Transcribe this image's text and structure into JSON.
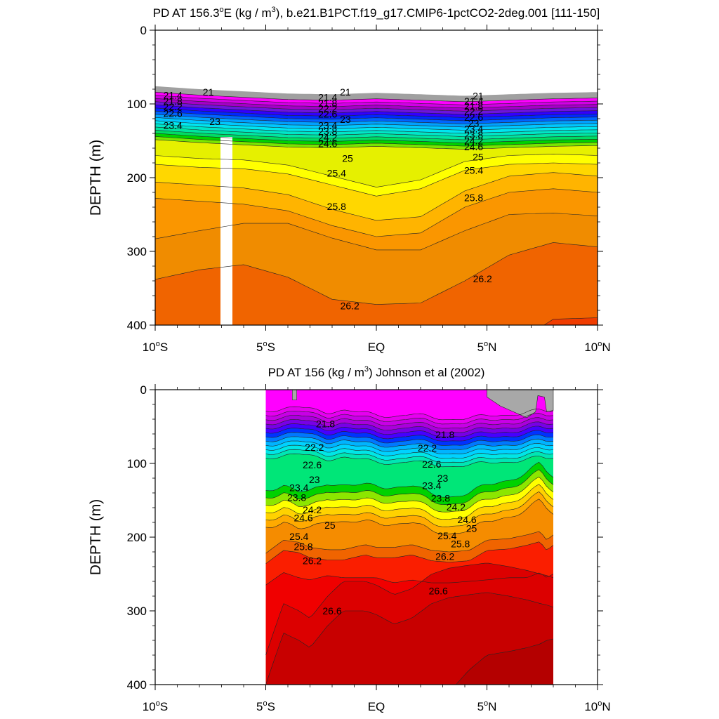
{
  "colors": {
    "levels_top": [
      "#a0a0a0",
      "#ff00ff",
      "#d200e6",
      "#a500c8",
      "#6e14dc",
      "#3200ff",
      "#0028ff",
      "#0064ff",
      "#00a0ff",
      "#00c8ff",
      "#00e6f0",
      "#00e6c8",
      "#00e6a0",
      "#00dc64",
      "#00d200",
      "#78e600",
      "#e6f000",
      "#ffff00",
      "#ffd700",
      "#ffb400",
      "#fa9600",
      "#f08c00",
      "#f06400",
      "#f03c00",
      "#fa0000"
    ],
    "levels_bottom": [
      "#ff00ff",
      "#e600f0",
      "#c800e6",
      "#aa00dc",
      "#7800e6",
      "#4600ff",
      "#0032ff",
      "#0078ff",
      "#00b4ff",
      "#00d2ff",
      "#00e6e6",
      "#00e6b4",
      "#00e678",
      "#00d200",
      "#8ce600",
      "#ffff00",
      "#ffd200",
      "#ffaa00",
      "#f58c00",
      "#f06400",
      "#fa1e00",
      "#f00000",
      "#dc0000",
      "#c80000",
      "#b40000"
    ],
    "land": "#a8a8a8",
    "gap": "#ffffff"
  },
  "chart_data": [
    {
      "type": "heatmap",
      "title": "PD AT 156.3°E (kg / m³), b.e21.B1PCT.f19_g17.CMIP6-1pctCO2-2deg.001 [111-150]",
      "title_parts": {
        "a": "PD AT 156.3",
        "b": "o",
        "c": "E (kg / m",
        "d": "3",
        "e": "), b.e21.B1PCT.f19_g17.CMIP6-1pctCO2-2deg.001 [111-150]"
      },
      "ylabel": "DEPTH (m)",
      "xlim": [
        -10,
        10
      ],
      "ylim": [
        400,
        0
      ],
      "yticks": [
        "0",
        "100",
        "200",
        "300",
        "400"
      ],
      "xticks": [
        {
          "num": "10",
          "sup": "o",
          "hemi": "S"
        },
        {
          "num": "5",
          "sup": "o",
          "hemi": "S"
        },
        {
          "num": "EQ",
          "sup": "",
          "hemi": ""
        },
        {
          "num": "5",
          "sup": "o",
          "hemi": "N"
        },
        {
          "num": "10",
          "sup": "o",
          "hemi": "N"
        }
      ],
      "contour_labels": [
        "21",
        "21.4",
        "21.8",
        "22.2",
        "22.6",
        "23",
        "23.4",
        "23.8",
        "24.2",
        "24.6",
        "25",
        "25.4",
        "25.8",
        "26.2"
      ],
      "labels": [
        {
          "text": "21",
          "lat": -7.6,
          "depth": 84
        },
        {
          "text": "21.4",
          "lat": -9.2,
          "depth": 88
        },
        {
          "text": "21.8",
          "lat": -9.2,
          "depth": 96
        },
        {
          "text": "22.2",
          "lat": -9.2,
          "depth": 104
        },
        {
          "text": "22.6",
          "lat": -9.2,
          "depth": 113
        },
        {
          "text": "23",
          "lat": -7.3,
          "depth": 124
        },
        {
          "text": "23.4",
          "lat": -9.2,
          "depth": 129
        },
        {
          "text": "21",
          "lat": -1.4,
          "depth": 84
        },
        {
          "text": "21.4",
          "lat": -2.2,
          "depth": 91
        },
        {
          "text": "21.8",
          "lat": -2.2,
          "depth": 99
        },
        {
          "text": "22.2",
          "lat": -2.2,
          "depth": 106
        },
        {
          "text": "22.6",
          "lat": -2.2,
          "depth": 114
        },
        {
          "text": "23",
          "lat": -1.4,
          "depth": 121
        },
        {
          "text": "23.4",
          "lat": -2.2,
          "depth": 129
        },
        {
          "text": "23.8",
          "lat": -2.2,
          "depth": 137
        },
        {
          "text": "24.2",
          "lat": -2.2,
          "depth": 145
        },
        {
          "text": "24.6",
          "lat": -2.2,
          "depth": 154
        },
        {
          "text": "25",
          "lat": -1.3,
          "depth": 174
        },
        {
          "text": "25.4",
          "lat": -1.8,
          "depth": 194
        },
        {
          "text": "25.8",
          "lat": -1.8,
          "depth": 239
        },
        {
          "text": "26.2",
          "lat": -1.2,
          "depth": 374
        },
        {
          "text": "21",
          "lat": 4.6,
          "depth": 89
        },
        {
          "text": "21.4",
          "lat": 4.4,
          "depth": 96
        },
        {
          "text": "21.8",
          "lat": 4.4,
          "depth": 103
        },
        {
          "text": "22.2",
          "lat": 4.4,
          "depth": 110
        },
        {
          "text": "22.6",
          "lat": 4.4,
          "depth": 118
        },
        {
          "text": "23",
          "lat": 4.4,
          "depth": 126
        },
        {
          "text": "23.4",
          "lat": 4.4,
          "depth": 134
        },
        {
          "text": "23.8",
          "lat": 4.4,
          "depth": 142
        },
        {
          "text": "24.2",
          "lat": 4.4,
          "depth": 150
        },
        {
          "text": "24.6",
          "lat": 4.4,
          "depth": 158
        },
        {
          "text": "25",
          "lat": 4.6,
          "depth": 172
        },
        {
          "text": "25.4",
          "lat": 4.4,
          "depth": 190
        },
        {
          "text": "25.8",
          "lat": 4.4,
          "depth": 227
        },
        {
          "text": "26.2",
          "lat": 4.8,
          "depth": 337
        }
      ]
    },
    {
      "type": "heatmap",
      "title": "PD AT 156 (kg / m³) Johnson et al (2002)",
      "title_parts": {
        "a": "PD AT 156 (kg / m",
        "d": "3",
        "e": ") Johnson et al (2002)"
      },
      "ylabel": "DEPTH (m)",
      "xlim": [
        -10,
        10
      ],
      "ylim": [
        400,
        0
      ],
      "data_range": [
        -5,
        8
      ],
      "yticks": [
        "0",
        "100",
        "200",
        "300",
        "400"
      ],
      "xticks": [
        {
          "num": "10",
          "sup": "o",
          "hemi": "S"
        },
        {
          "num": "5",
          "sup": "o",
          "hemi": "S"
        },
        {
          "num": "EQ",
          "sup": "",
          "hemi": ""
        },
        {
          "num": "5",
          "sup": "o",
          "hemi": "N"
        },
        {
          "num": "10",
          "sup": "o",
          "hemi": "N"
        }
      ],
      "contour_labels": [
        "21.8",
        "22.2",
        "22.6",
        "23",
        "23.4",
        "23.8",
        "24.2",
        "24.6",
        "25",
        "25.4",
        "25.8",
        "26.2",
        "26.6"
      ],
      "labels": [
        {
          "text": "21.8",
          "lat": -2.3,
          "depth": 46
        },
        {
          "text": "22.2",
          "lat": -2.8,
          "depth": 78
        },
        {
          "text": "22.6",
          "lat": -2.9,
          "depth": 102
        },
        {
          "text": "23",
          "lat": -2.8,
          "depth": 122
        },
        {
          "text": "23.4",
          "lat": -3.5,
          "depth": 133
        },
        {
          "text": "23.8",
          "lat": -3.6,
          "depth": 146
        },
        {
          "text": "24.2",
          "lat": -2.9,
          "depth": 163
        },
        {
          "text": "24.6",
          "lat": -3.3,
          "depth": 174
        },
        {
          "text": "25",
          "lat": -2.1,
          "depth": 184
        },
        {
          "text": "25.4",
          "lat": -3.5,
          "depth": 199
        },
        {
          "text": "25.8",
          "lat": -3.3,
          "depth": 213
        },
        {
          "text": "26.2",
          "lat": -2.9,
          "depth": 232
        },
        {
          "text": "26.6",
          "lat": -2.0,
          "depth": 300
        },
        {
          "text": "21.8",
          "lat": 3.1,
          "depth": 61
        },
        {
          "text": "22.2",
          "lat": 2.3,
          "depth": 79
        },
        {
          "text": "22.6",
          "lat": 2.5,
          "depth": 101
        },
        {
          "text": "23",
          "lat": 3.0,
          "depth": 120
        },
        {
          "text": "23.4",
          "lat": 2.5,
          "depth": 130
        },
        {
          "text": "23.8",
          "lat": 2.9,
          "depth": 147
        },
        {
          "text": "24.2",
          "lat": 3.6,
          "depth": 159
        },
        {
          "text": "24.6",
          "lat": 4.1,
          "depth": 176
        },
        {
          "text": "25",
          "lat": 4.3,
          "depth": 188
        },
        {
          "text": "25.4",
          "lat": 3.2,
          "depth": 198
        },
        {
          "text": "25.8",
          "lat": 3.8,
          "depth": 209
        },
        {
          "text": "26.2",
          "lat": 3.1,
          "depth": 226
        },
        {
          "text": "26.6",
          "lat": 2.8,
          "depth": 273
        }
      ]
    }
  ]
}
